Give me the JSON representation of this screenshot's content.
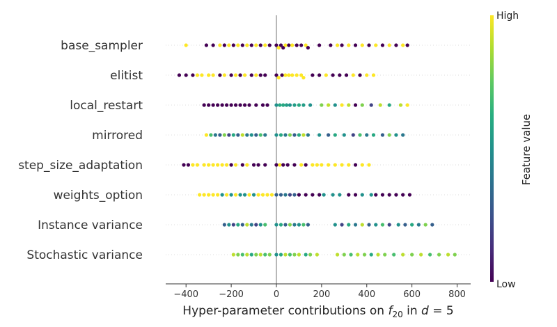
{
  "chart_data": {
    "type": "scatter",
    "subtype": "beeswarm",
    "xlabel": {
      "prefix": "Hyper-parameter contributions on ",
      "f_main": "f",
      "f_sub": "20",
      "middle": " in ",
      "d_main": "d",
      "suffix": " = 5"
    },
    "xlim": [
      -490,
      860
    ],
    "xticks": [
      -400,
      -200,
      0,
      200,
      400,
      600,
      800
    ],
    "xtick_labels": [
      "−400",
      "−200",
      "0",
      "200",
      "400",
      "600",
      "800"
    ],
    "colorbar": {
      "title": "Feature value",
      "high_label": "High",
      "low_label": "Low",
      "colormap": "viridis"
    },
    "features": [
      {
        "name": "base_sampler",
        "points": [
          [
            -400,
            1
          ],
          [
            -310,
            0
          ],
          [
            -280,
            0
          ],
          [
            -250,
            1
          ],
          [
            -230,
            0
          ],
          [
            -210,
            1
          ],
          [
            -190,
            0
          ],
          [
            -170,
            1
          ],
          [
            -150,
            0
          ],
          [
            -130,
            1
          ],
          [
            -110,
            0
          ],
          [
            -90,
            1
          ],
          [
            -70,
            0
          ],
          [
            -50,
            1
          ],
          [
            -30,
            0
          ],
          [
            0,
            0
          ],
          [
            10,
            1
          ],
          [
            20,
            0
          ],
          [
            30,
            0
          ],
          [
            40,
            1
          ],
          [
            55,
            0
          ],
          [
            70,
            1
          ],
          [
            90,
            0
          ],
          [
            110,
            0
          ],
          [
            130,
            1
          ],
          [
            140,
            0
          ],
          [
            190,
            0
          ],
          [
            240,
            0
          ],
          [
            270,
            1
          ],
          [
            290,
            0
          ],
          [
            320,
            1
          ],
          [
            350,
            0
          ],
          [
            380,
            1
          ],
          [
            410,
            0
          ],
          [
            440,
            1
          ],
          [
            470,
            0
          ],
          [
            500,
            1
          ],
          [
            530,
            0
          ],
          [
            560,
            1
          ],
          [
            580,
            0
          ]
        ]
      },
      {
        "name": "elitist",
        "points": [
          [
            -430,
            0
          ],
          [
            -400,
            0
          ],
          [
            -370,
            0
          ],
          [
            -350,
            1
          ],
          [
            -330,
            1
          ],
          [
            -300,
            1
          ],
          [
            -280,
            1
          ],
          [
            -250,
            0
          ],
          [
            -230,
            1
          ],
          [
            -200,
            0
          ],
          [
            -180,
            1
          ],
          [
            -160,
            0
          ],
          [
            -140,
            1
          ],
          [
            -110,
            0
          ],
          [
            -90,
            1
          ],
          [
            -70,
            0
          ],
          [
            -50,
            0
          ],
          [
            0,
            0
          ],
          [
            10,
            1
          ],
          [
            25,
            0
          ],
          [
            40,
            1
          ],
          [
            55,
            1
          ],
          [
            70,
            1
          ],
          [
            90,
            1
          ],
          [
            110,
            1
          ],
          [
            120,
            1
          ],
          [
            160,
            0
          ],
          [
            190,
            0
          ],
          [
            220,
            1
          ],
          [
            250,
            0
          ],
          [
            280,
            0
          ],
          [
            310,
            0
          ],
          [
            340,
            1
          ],
          [
            370,
            0
          ],
          [
            400,
            1
          ],
          [
            430,
            1
          ]
        ]
      },
      {
        "name": "local_restart",
        "points": [
          [
            -320,
            0
          ],
          [
            -300,
            0
          ],
          [
            -280,
            0
          ],
          [
            -260,
            0
          ],
          [
            -240,
            0
          ],
          [
            -220,
            0
          ],
          [
            -200,
            0
          ],
          [
            -180,
            0
          ],
          [
            -160,
            0
          ],
          [
            -140,
            0
          ],
          [
            -120,
            0
          ],
          [
            -90,
            0
          ],
          [
            -60,
            0
          ],
          [
            -40,
            0
          ],
          [
            0,
            0.5
          ],
          [
            15,
            0.6
          ],
          [
            30,
            0.6
          ],
          [
            45,
            0.55
          ],
          [
            60,
            0.5
          ],
          [
            80,
            0.55
          ],
          [
            100,
            0.6
          ],
          [
            120,
            0.55
          ],
          [
            150,
            0.5
          ],
          [
            200,
            0.8
          ],
          [
            230,
            0.9
          ],
          [
            260,
            0.5
          ],
          [
            290,
            1
          ],
          [
            320,
            0.9
          ],
          [
            350,
            0
          ],
          [
            380,
            0.8
          ],
          [
            420,
            0.2
          ],
          [
            460,
            0.9
          ],
          [
            500,
            0.6
          ],
          [
            550,
            0.9
          ],
          [
            580,
            1
          ]
        ]
      },
      {
        "name": "mirrored",
        "points": [
          [
            -310,
            1
          ],
          [
            -290,
            0.7
          ],
          [
            -270,
            0.4
          ],
          [
            -250,
            0.3
          ],
          [
            -230,
            0.8
          ],
          [
            -210,
            0.2
          ],
          [
            -190,
            0.6
          ],
          [
            -170,
            0.3
          ],
          [
            -150,
            0.9
          ],
          [
            -130,
            0.4
          ],
          [
            -110,
            0.5
          ],
          [
            -90,
            0.3
          ],
          [
            -70,
            0.7
          ],
          [
            -50,
            0.4
          ],
          [
            0,
            0.5
          ],
          [
            20,
            0.6
          ],
          [
            40,
            0.4
          ],
          [
            60,
            0.8
          ],
          [
            80,
            0.3
          ],
          [
            100,
            0.6
          ],
          [
            120,
            0.9
          ],
          [
            140,
            0.4
          ],
          [
            190,
            0.5
          ],
          [
            230,
            0.3
          ],
          [
            260,
            0.6
          ],
          [
            300,
            0.5
          ],
          [
            340,
            0.2
          ],
          [
            370,
            0.7
          ],
          [
            400,
            0.4
          ],
          [
            430,
            0.6
          ],
          [
            470,
            0.3
          ],
          [
            500,
            0.8
          ],
          [
            530,
            0.5
          ],
          [
            560,
            0.4
          ]
        ]
      },
      {
        "name": "step_size_adaptation",
        "points": [
          [
            -410,
            0
          ],
          [
            -390,
            0
          ],
          [
            -370,
            1
          ],
          [
            -350,
            1
          ],
          [
            -320,
            1
          ],
          [
            -300,
            1
          ],
          [
            -280,
            1
          ],
          [
            -260,
            1
          ],
          [
            -240,
            1
          ],
          [
            -220,
            1
          ],
          [
            -200,
            0
          ],
          [
            -180,
            1
          ],
          [
            -150,
            0
          ],
          [
            -130,
            1
          ],
          [
            -100,
            0
          ],
          [
            -80,
            0
          ],
          [
            -50,
            0
          ],
          [
            0,
            0
          ],
          [
            15,
            1
          ],
          [
            30,
            0
          ],
          [
            50,
            0
          ],
          [
            80,
            0
          ],
          [
            110,
            1
          ],
          [
            130,
            0
          ],
          [
            160,
            1
          ],
          [
            180,
            1
          ],
          [
            200,
            1
          ],
          [
            230,
            1
          ],
          [
            260,
            1
          ],
          [
            290,
            1
          ],
          [
            320,
            1
          ],
          [
            350,
            0
          ],
          [
            380,
            1
          ],
          [
            410,
            1
          ]
        ]
      },
      {
        "name": "weights_option",
        "points": [
          [
            -340,
            1
          ],
          [
            -320,
            1
          ],
          [
            -300,
            1
          ],
          [
            -280,
            1
          ],
          [
            -260,
            1
          ],
          [
            -240,
            0.5
          ],
          [
            -220,
            1
          ],
          [
            -200,
            0.5
          ],
          [
            -180,
            1
          ],
          [
            -160,
            0.5
          ],
          [
            -140,
            0.5
          ],
          [
            -120,
            1
          ],
          [
            -100,
            0.5
          ],
          [
            -80,
            1
          ],
          [
            -60,
            1
          ],
          [
            -40,
            1
          ],
          [
            -20,
            1
          ],
          [
            0,
            0.3
          ],
          [
            20,
            0.3
          ],
          [
            40,
            0.4
          ],
          [
            60,
            0.2
          ],
          [
            80,
            0.3
          ],
          [
            100,
            0
          ],
          [
            130,
            0
          ],
          [
            160,
            0
          ],
          [
            190,
            0
          ],
          [
            210,
            0.5
          ],
          [
            250,
            0.5
          ],
          [
            280,
            0.5
          ],
          [
            320,
            0
          ],
          [
            350,
            0
          ],
          [
            380,
            0.5
          ],
          [
            420,
            0.5
          ],
          [
            440,
            0
          ],
          [
            470,
            0
          ],
          [
            500,
            0
          ],
          [
            530,
            0
          ],
          [
            560,
            0
          ],
          [
            590,
            0
          ]
        ]
      },
      {
        "name": "Instance variance",
        "points": [
          [
            -230,
            0.3
          ],
          [
            -210,
            0.5
          ],
          [
            -190,
            0.2
          ],
          [
            -170,
            0.6
          ],
          [
            -150,
            0.3
          ],
          [
            -130,
            0.9
          ],
          [
            -110,
            0.4
          ],
          [
            -90,
            0.2
          ],
          [
            -70,
            0.5
          ],
          [
            -50,
            0.7
          ],
          [
            0,
            0.5
          ],
          [
            20,
            0.6
          ],
          [
            40,
            0.3
          ],
          [
            60,
            0.8
          ],
          [
            80,
            0.4
          ],
          [
            100,
            0.5
          ],
          [
            120,
            0.7
          ],
          [
            140,
            0.3
          ],
          [
            260,
            0.5
          ],
          [
            290,
            0.2
          ],
          [
            320,
            0.6
          ],
          [
            350,
            0.4
          ],
          [
            380,
            0.9
          ],
          [
            410,
            0.3
          ],
          [
            440,
            0.5
          ],
          [
            470,
            0.7
          ],
          [
            500,
            0.2
          ],
          [
            540,
            0.5
          ],
          [
            570,
            0.3
          ],
          [
            600,
            0.6
          ],
          [
            630,
            0.4
          ],
          [
            660,
            0.8
          ],
          [
            690,
            0.3
          ]
        ]
      },
      {
        "name": "Stochastic variance",
        "points": [
          [
            -190,
            0.9
          ],
          [
            -170,
            0.8
          ],
          [
            -150,
            0.7
          ],
          [
            -130,
            0.9
          ],
          [
            -110,
            0.6
          ],
          [
            -90,
            0.8
          ],
          [
            -70,
            0.9
          ],
          [
            -50,
            0.7
          ],
          [
            -30,
            0.8
          ],
          [
            0,
            0.5
          ],
          [
            20,
            0.6
          ],
          [
            40,
            0.9
          ],
          [
            60,
            0.7
          ],
          [
            80,
            0.8
          ],
          [
            100,
            0.9
          ],
          [
            130,
            0.6
          ],
          [
            150,
            0.8
          ],
          [
            180,
            0.9
          ],
          [
            270,
            0.9
          ],
          [
            300,
            0.8
          ],
          [
            330,
            0.7
          ],
          [
            360,
            0.9
          ],
          [
            390,
            0.8
          ],
          [
            420,
            0.6
          ],
          [
            450,
            0.9
          ],
          [
            480,
            0.8
          ],
          [
            520,
            0.7
          ],
          [
            560,
            0.9
          ],
          [
            600,
            0.8
          ],
          [
            640,
            0.9
          ],
          [
            680,
            0.7
          ],
          [
            720,
            0.8
          ],
          [
            760,
            0.9
          ],
          [
            790,
            0.8
          ]
        ]
      }
    ]
  }
}
